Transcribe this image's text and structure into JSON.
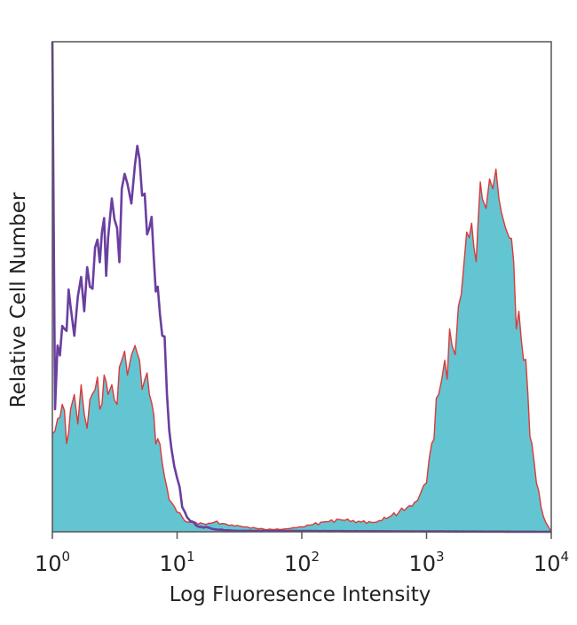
{
  "chart_data": {
    "type": "area",
    "title": "",
    "xlabel": "Log Fluoresence Intensity",
    "ylabel": "Relative Cell Number",
    "x_scale": "log",
    "xlim": [
      1,
      10000
    ],
    "ylim": [
      0,
      100
    ],
    "grid": false,
    "legend": "none",
    "x_ticks": [
      {
        "value": 1,
        "base": "10",
        "exp": "0"
      },
      {
        "value": 10,
        "base": "10",
        "exp": "1"
      },
      {
        "value": 100,
        "base": "10",
        "exp": "2"
      },
      {
        "value": 1000,
        "base": "10",
        "exp": "3"
      },
      {
        "value": 10000,
        "base": "10",
        "exp": "4"
      }
    ],
    "series": [
      {
        "role": "control",
        "color": "#6a3fa0",
        "fill": "none",
        "x": [
          1.0,
          1.05,
          1.1,
          1.15,
          1.2,
          1.3,
          1.4,
          1.5,
          1.6,
          1.7,
          1.8,
          1.9,
          2.0,
          2.2,
          2.4,
          2.6,
          2.8,
          3.0,
          3.3,
          3.6,
          4.0,
          4.3,
          4.6,
          5.0,
          5.5,
          6.0,
          6.5,
          7.0,
          7.6,
          8.3,
          9.0,
          10.0,
          11.0,
          12.0,
          13.5,
          15.0,
          17.0,
          20.0,
          25.0,
          30.0,
          10000
        ],
        "y": [
          100,
          25,
          38,
          36,
          42,
          41,
          46,
          40,
          48,
          52,
          45,
          54,
          50,
          58,
          55,
          64,
          60,
          68,
          62,
          70,
          71,
          67,
          75,
          76,
          69,
          62,
          56,
          50,
          40,
          28,
          17,
          11,
          5,
          3,
          2,
          1,
          1,
          0.5,
          0.3,
          0.2,
          0
        ]
      },
      {
        "role": "stained",
        "color": "#d93a3a",
        "fill": "#63c5d1",
        "x": [
          1.0,
          1.1,
          1.2,
          1.3,
          1.4,
          1.5,
          1.6,
          1.7,
          1.8,
          2.0,
          2.2,
          2.4,
          2.6,
          2.8,
          3.0,
          3.3,
          3.6,
          4.0,
          4.3,
          4.6,
          5.0,
          5.5,
          6.0,
          6.5,
          7.0,
          7.6,
          8.3,
          9.0,
          10.0,
          11.0,
          12.0,
          14.0,
          17.0,
          20.0,
          25.0,
          35.0,
          50.0,
          70.0,
          100.0,
          150.0,
          200.0,
          300.0,
          400.0,
          500.0,
          600.0,
          700.0,
          800.0,
          900.0,
          1000,
          1100,
          1250,
          1400,
          1600,
          1800,
          2000,
          2200,
          2400,
          2600,
          2800,
          3000,
          3200,
          3400,
          3600,
          3800,
          4000,
          4300,
          4600,
          5000,
          5500,
          6000,
          6500,
          7000,
          7600,
          8300,
          9000,
          10000
        ],
        "y": [
          20,
          23,
          26,
          18,
          25,
          28,
          22,
          30,
          24,
          27,
          29,
          25,
          32,
          28,
          30,
          26,
          35,
          32,
          36,
          38,
          35,
          31,
          28,
          24,
          19,
          14,
          9,
          6,
          4,
          3,
          2,
          2,
          1.5,
          2,
          1.5,
          1,
          0.5,
          0.5,
          1,
          2,
          2.5,
          2,
          2,
          3,
          4,
          5,
          6,
          8,
          10,
          18,
          28,
          35,
          38,
          46,
          55,
          60,
          58,
          64,
          68,
          66,
          72,
          70,
          74,
          68,
          65,
          62,
          60,
          55,
          45,
          35,
          28,
          18,
          10,
          5,
          2,
          0
        ]
      }
    ]
  }
}
